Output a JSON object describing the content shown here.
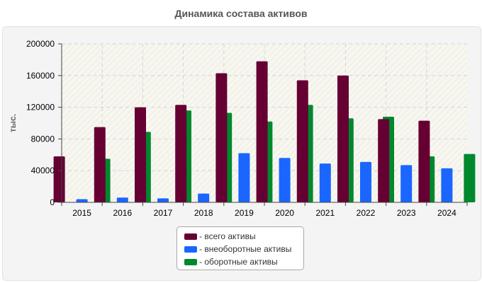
{
  "chart_data": {
    "type": "bar",
    "title": "Динамика состава активов",
    "xlabel": "",
    "ylabel": "тыс.",
    "ylim": [
      0,
      200000
    ],
    "yticks": [
      "0",
      "40000",
      "80000",
      "120000",
      "160000",
      "200000"
    ],
    "ytick_values": [
      0,
      40000,
      80000,
      120000,
      160000,
      200000
    ],
    "categories": [
      "2015",
      "2016",
      "2017",
      "2018",
      "2019",
      "2020",
      "2021",
      "2022",
      "2023",
      "2024"
    ],
    "series": [
      {
        "name": "всего активы",
        "color": "#660033",
        "values": [
          58000,
          95000,
          120000,
          123000,
          163000,
          178000,
          154000,
          160000,
          105000,
          103000
        ]
      },
      {
        "name": "внеоборотные активы",
        "color": "#1a66ff",
        "values": [
          4000,
          6000,
          5000,
          11000,
          62000,
          56000,
          49000,
          51000,
          47000,
          43000
        ]
      },
      {
        "name": "оборотные активы",
        "color": "#00882e",
        "values": [
          55000,
          89000,
          116000,
          113000,
          102000,
          123000,
          106000,
          108000,
          58000,
          61000
        ]
      }
    ],
    "grid": true,
    "legend_position": "bottom-center"
  },
  "legend": {
    "items": [
      {
        "label": "- всего активы",
        "color": "#660033"
      },
      {
        "label": "- внеоборотные активы",
        "color": "#1a66ff"
      },
      {
        "label": "- оборотные активы",
        "color": "#00882e"
      }
    ]
  }
}
